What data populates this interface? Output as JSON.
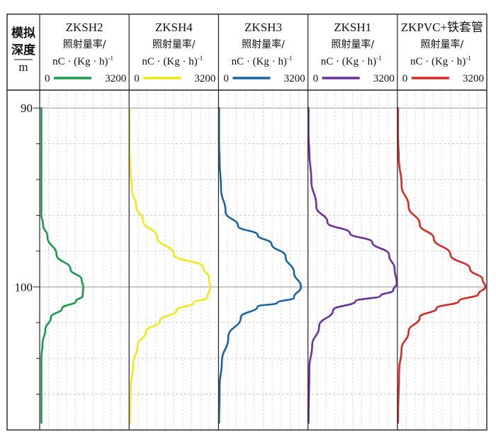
{
  "chart_data": {
    "type": "line",
    "ylabel_line1": "模拟",
    "ylabel_line2": "深度",
    "yunit": "m",
    "ylim": [
      89,
      108
    ],
    "yticks": [
      90,
      100
    ],
    "xlim": [
      0,
      3200
    ],
    "grid": true,
    "series": [
      {
        "name": "ZKSH2",
        "sublabel": "照射量率/",
        "unit_prefix": "nC · (Kg · h)",
        "unit_sup": "-1",
        "range_min": "0",
        "range_max": "3200",
        "color": "#1a9a4a",
        "points": [
          [
            60,
            90
          ],
          [
            60,
            93
          ],
          [
            60,
            95
          ],
          [
            60,
            96
          ],
          [
            120,
            96.5
          ],
          [
            280,
            97.2
          ],
          [
            600,
            98.2
          ],
          [
            1100,
            99.0
          ],
          [
            1500,
            99.6
          ],
          [
            1560,
            100.0
          ],
          [
            1540,
            100.5
          ],
          [
            1300,
            100.8
          ],
          [
            800,
            101.2
          ],
          [
            400,
            101.7
          ],
          [
            200,
            102.4
          ],
          [
            100,
            103.2
          ],
          [
            60,
            104
          ],
          [
            60,
            106
          ],
          [
            60,
            107.6
          ]
        ]
      },
      {
        "name": "ZKSH4",
        "sublabel": "照射量率/",
        "unit_prefix": "nC · (Kg · h)",
        "unit_sup": "-1",
        "range_min": "0",
        "range_max": "3200",
        "color": "#f3e61a",
        "points": [
          [
            20,
            90
          ],
          [
            20,
            92.5
          ],
          [
            50,
            93.5
          ],
          [
            100,
            94.5
          ],
          [
            250,
            95.5
          ],
          [
            500,
            96.3
          ],
          [
            1000,
            97.2
          ],
          [
            1600,
            98.2
          ],
          [
            2650,
            98.9
          ],
          [
            2850,
            99.5
          ],
          [
            2900,
            100.0
          ],
          [
            2800,
            100.6
          ],
          [
            2300,
            100.9
          ],
          [
            1700,
            101.3
          ],
          [
            1100,
            101.9
          ],
          [
            600,
            102.5
          ],
          [
            300,
            103.3
          ],
          [
            150,
            104.3
          ],
          [
            60,
            105.5
          ],
          [
            30,
            107.6
          ]
        ]
      },
      {
        "name": "ZKSH3",
        "sublabel": "照射量率/",
        "unit_prefix": "nC · (Kg · h)",
        "unit_sup": "-1",
        "range_min": "0",
        "range_max": "3200",
        "color": "#1a64a4",
        "points": [
          [
            20,
            90
          ],
          [
            20,
            92
          ],
          [
            40,
            93
          ],
          [
            90,
            94.5
          ],
          [
            250,
            95.8
          ],
          [
            700,
            96.6
          ],
          [
            1400,
            97.1
          ],
          [
            1900,
            97.6
          ],
          [
            2400,
            98.3
          ],
          [
            2700,
            99.2
          ],
          [
            2950,
            100.0
          ],
          [
            2700,
            100.6
          ],
          [
            2100,
            100.9
          ],
          [
            1400,
            101.1
          ],
          [
            800,
            101.7
          ],
          [
            350,
            102.8
          ],
          [
            120,
            104.2
          ],
          [
            40,
            105.5
          ],
          [
            20,
            107.6
          ]
        ]
      },
      {
        "name": "ZKSH1",
        "sublabel": "照射量率/",
        "unit_prefix": "nC · (Kg · h)",
        "unit_sup": "-1",
        "range_min": "0",
        "range_max": "3200",
        "color": "#6b2fa0",
        "points": [
          [
            20,
            90
          ],
          [
            20,
            91.5
          ],
          [
            50,
            92.5
          ],
          [
            120,
            94
          ],
          [
            300,
            95.5
          ],
          [
            700,
            96.4
          ],
          [
            1500,
            97.0
          ],
          [
            2300,
            97.5
          ],
          [
            2900,
            98.2
          ],
          [
            3100,
            99.0
          ],
          [
            3180,
            99.8
          ],
          [
            3050,
            100.2
          ],
          [
            2600,
            100.5
          ],
          [
            1700,
            100.8
          ],
          [
            900,
            101.3
          ],
          [
            400,
            102.2
          ],
          [
            150,
            103.3
          ],
          [
            50,
            104.5
          ],
          [
            20,
            107.6
          ]
        ]
      },
      {
        "name": "ZKPVC+铁套管",
        "sublabel": "照射量率/",
        "unit_prefix": "nC · (Kg · h)",
        "unit_sup": "-1",
        "range_min": "0",
        "range_max": "3200",
        "color": "#d62a26",
        "points": [
          [
            20,
            90
          ],
          [
            20,
            91.5
          ],
          [
            50,
            92.8
          ],
          [
            150,
            94.3
          ],
          [
            400,
            95.5
          ],
          [
            800,
            96.5
          ],
          [
            1300,
            97.3
          ],
          [
            1900,
            98.2
          ],
          [
            2600,
            99.0
          ],
          [
            3050,
            99.6
          ],
          [
            3150,
            100.0
          ],
          [
            2900,
            100.4
          ],
          [
            2200,
            100.8
          ],
          [
            1400,
            101.2
          ],
          [
            800,
            101.7
          ],
          [
            400,
            102.5
          ],
          [
            150,
            103.5
          ],
          [
            60,
            104.7
          ],
          [
            20,
            107.6
          ]
        ]
      }
    ]
  }
}
